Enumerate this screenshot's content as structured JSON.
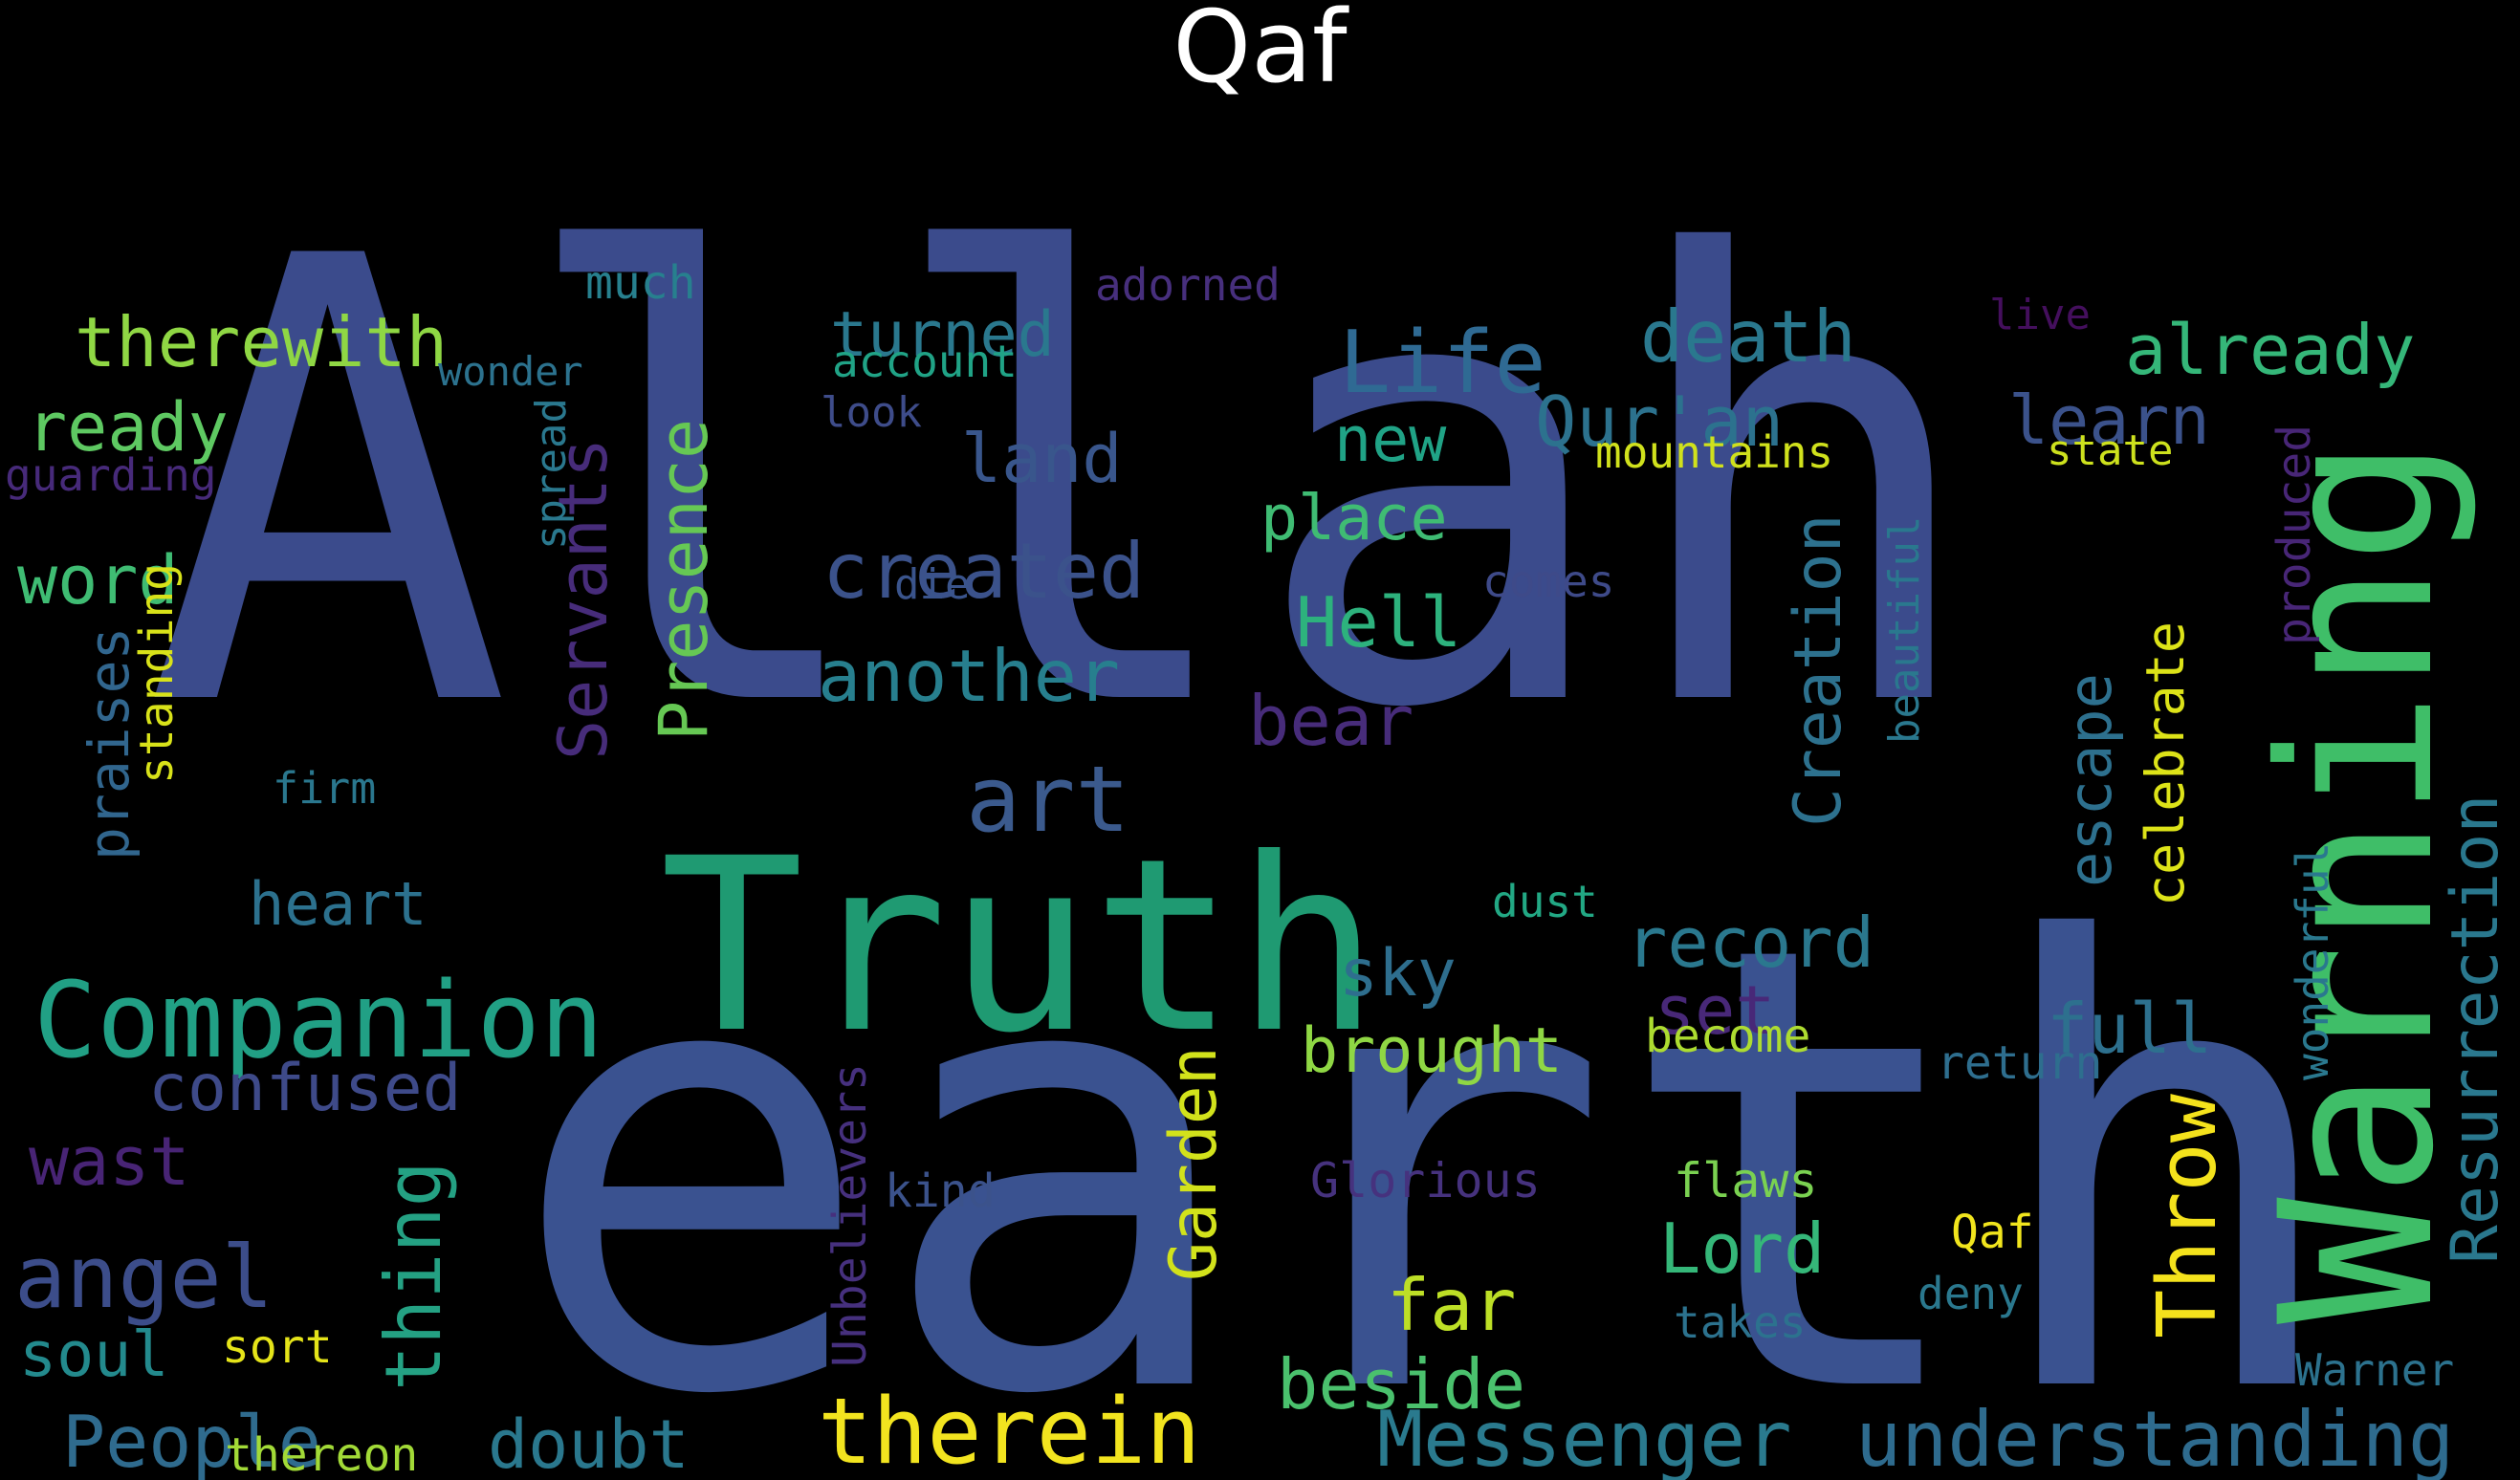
{
  "title": "Qaf",
  "palette": {
    "background": "#000000",
    "title": "#ffffff",
    "viridis": [
      "#440154",
      "#472d7b",
      "#3b528b",
      "#2c728e",
      "#21918c",
      "#28ae80",
      "#5ec962",
      "#addc30",
      "#fde725"
    ]
  },
  "words": [
    {
      "text": "Allah",
      "color": "#3b4b8c"
    },
    {
      "text": "earth",
      "color": "#3a5290"
    },
    {
      "text": "Truth",
      "color": "#1f9a72"
    },
    {
      "text": "Warning",
      "color": "#3fbe68"
    },
    {
      "text": "Companion",
      "color": "#21a085"
    },
    {
      "text": "therein",
      "color": "#f2e41f"
    },
    {
      "text": "Life",
      "color": "#2f6a93"
    },
    {
      "text": "Messenger",
      "color": "#2a7a8e"
    },
    {
      "text": "understanding",
      "color": "#2e6b8e"
    },
    {
      "text": "Resurrection",
      "color": "#2a788e"
    },
    {
      "text": "Throw",
      "color": "#f4e21c"
    },
    {
      "text": "art",
      "color": "#3b5a8d"
    },
    {
      "text": "thing",
      "color": "#24a183"
    },
    {
      "text": "angel",
      "color": "#3c4d8a"
    },
    {
      "text": "People",
      "color": "#2f6b8e"
    },
    {
      "text": "created",
      "color": "#3b528b"
    },
    {
      "text": "another",
      "color": "#277f8e"
    },
    {
      "text": "Presence",
      "color": "#66c854"
    },
    {
      "text": "Servants",
      "color": "#472c7a"
    },
    {
      "text": "Creation",
      "color": "#2d718e"
    },
    {
      "text": "death",
      "color": "#2a788e"
    },
    {
      "text": "already",
      "color": "#35b779"
    },
    {
      "text": "therewith",
      "color": "#8fd744"
    },
    {
      "text": "turned",
      "color": "#2a788e"
    },
    {
      "text": "ready",
      "color": "#5ec962"
    },
    {
      "text": "word",
      "color": "#3fbc73"
    },
    {
      "text": "confused",
      "color": "#3e4a89"
    },
    {
      "text": "wast",
      "color": "#482475"
    },
    {
      "text": "soul",
      "color": "#238a8d"
    },
    {
      "text": "heart",
      "color": "#2c718e"
    },
    {
      "text": "doubt",
      "color": "#2a788e"
    },
    {
      "text": "Garden",
      "color": "#d2e21b"
    },
    {
      "text": "far",
      "color": "#bddf26"
    },
    {
      "text": "beside",
      "color": "#4ac16d"
    },
    {
      "text": "Lord",
      "color": "#35b779"
    },
    {
      "text": "brought",
      "color": "#8fd744"
    },
    {
      "text": "sky",
      "color": "#2e6e8e"
    },
    {
      "text": "set",
      "color": "#482878"
    },
    {
      "text": "record",
      "color": "#2a788e"
    },
    {
      "text": "Hell",
      "color": "#2db27d"
    },
    {
      "text": "bear",
      "color": "#472c7a"
    },
    {
      "text": "place",
      "color": "#3fbc73"
    },
    {
      "text": "new",
      "color": "#20a386"
    },
    {
      "text": "land",
      "color": "#39568c"
    },
    {
      "text": "Qur'an",
      "color": "#2c728e"
    },
    {
      "text": "learn",
      "color": "#3b528b"
    },
    {
      "text": "escape",
      "color": "#2d708e"
    },
    {
      "text": "celebrate",
      "color": "#dde318"
    },
    {
      "text": "full",
      "color": "#2d708e"
    },
    {
      "text": "much",
      "color": "#27808e"
    },
    {
      "text": "wonder",
      "color": "#2c728e"
    },
    {
      "text": "guarding",
      "color": "#472a7a"
    },
    {
      "text": "praises",
      "color": "#31668e"
    },
    {
      "text": "standing",
      "color": "#d8e219"
    },
    {
      "text": "spread",
      "color": "#2a788e"
    },
    {
      "text": "firm",
      "color": "#2a778e"
    },
    {
      "text": "sort",
      "color": "#e5e419"
    },
    {
      "text": "thereon",
      "color": "#a2da37"
    },
    {
      "text": "account",
      "color": "#20a386"
    },
    {
      "text": "look",
      "color": "#3e4c8a"
    },
    {
      "text": "adorned",
      "color": "#472f7d"
    },
    {
      "text": "die",
      "color": "#3a548c"
    },
    {
      "text": "mountains",
      "color": "#d0e11c"
    },
    {
      "text": "live",
      "color": "#440f5d"
    },
    {
      "text": "state",
      "color": "#cde11d"
    },
    {
      "text": "comes",
      "color": "#3e4a89"
    },
    {
      "text": "beautiful",
      "color": "#2a788e"
    },
    {
      "text": "produced",
      "color": "#482677"
    },
    {
      "text": "dust",
      "color": "#22a884"
    },
    {
      "text": "become",
      "color": "#addc30"
    },
    {
      "text": "return",
      "color": "#2e6e8e"
    },
    {
      "text": "wonderful",
      "color": "#2a788e"
    },
    {
      "text": "Warner",
      "color": "#2c728e"
    },
    {
      "text": "Glorious",
      "color": "#46327e"
    },
    {
      "text": "flaws",
      "color": "#7ad151"
    },
    {
      "text": "Qaf",
      "color": "#f1e51d"
    },
    {
      "text": "deny",
      "color": "#2a788e"
    },
    {
      "text": "takes",
      "color": "#2c728e"
    },
    {
      "text": "Unbelievers",
      "color": "#46307e"
    },
    {
      "text": "kind",
      "color": "#3b528b"
    }
  ]
}
